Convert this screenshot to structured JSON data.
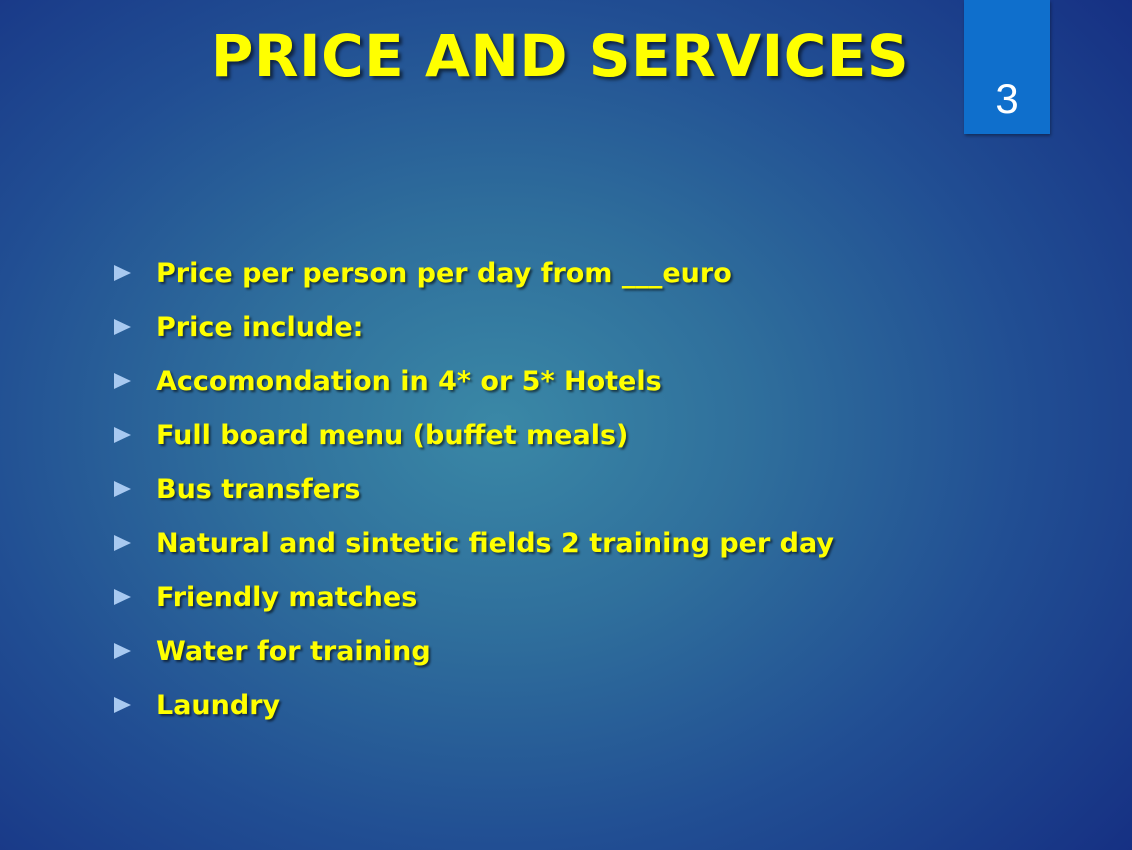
{
  "slide": {
    "title": "PRICE AND SERVICES",
    "page_number": "3",
    "bullet_icon": "triangle-right-icon",
    "colors": {
      "title": "#ffff00",
      "text": "#ffff00",
      "bullet": "#a8c9f0",
      "page_badge": "#0f6fcc",
      "background_center": "#3a88a6",
      "background_edge": "#152e82"
    },
    "bullets": [
      "Price per person per day from ___euro",
      "Price include:",
      "Accomondation in 4* or 5* Hotels",
      "Full board menu (buffet meals)",
      "Bus transfers",
      "Natural and sintetic fields 2 training per day",
      "Friendly matches",
      "Water for training",
      "Laundry"
    ]
  }
}
